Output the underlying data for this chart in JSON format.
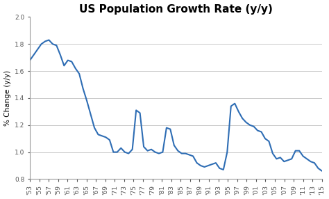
{
  "title": "US Population Growth Rate (y/y)",
  "ylabel": "% Change (y/y)",
  "background_color": "#ffffff",
  "line_color": "#2e6db4",
  "line_width": 1.5,
  "ylim": [
    0.8,
    2.0
  ],
  "yticks": [
    0.8,
    1.0,
    1.2,
    1.4,
    1.6,
    1.8,
    2.0
  ],
  "x_labels": [
    "'53",
    "'55",
    "'57",
    "'59",
    "'61",
    "'63",
    "'65",
    "'67",
    "'69",
    "'71",
    "'73",
    "'75",
    "'77",
    "'79",
    "'81",
    "'83",
    "'85",
    "'87",
    "'89",
    "'91",
    "'93",
    "'95",
    "'97",
    "'99",
    "'01",
    "'03",
    "'05",
    "'07",
    "'09",
    "'11",
    "'13",
    "'15"
  ],
  "data": [
    1.68,
    1.72,
    1.76,
    1.8,
    1.82,
    1.83,
    1.8,
    1.79,
    1.72,
    1.64,
    1.68,
    1.67,
    1.62,
    1.58,
    1.47,
    1.38,
    1.28,
    1.18,
    1.13,
    1.12,
    1.11,
    1.09,
    1.0,
    1.0,
    1.03,
    1.0,
    0.99,
    1.02,
    1.31,
    1.29,
    1.04,
    1.01,
    1.02,
    1.0,
    0.99,
    1.0,
    1.18,
    1.17,
    1.05,
    1.01,
    0.99,
    0.99,
    0.98,
    0.97,
    0.92,
    0.9,
    0.89,
    0.9,
    0.91,
    0.92,
    0.88,
    0.87,
    1.0,
    1.34,
    1.36,
    1.3,
    1.25,
    1.22,
    1.2,
    1.19,
    1.16,
    1.15,
    1.1,
    1.08,
    0.99,
    0.95,
    0.96,
    0.93,
    0.94,
    0.95,
    1.01,
    1.01,
    0.97,
    0.95,
    0.93,
    0.92,
    0.88,
    0.86
  ],
  "tick_label_fontsize": 6.5,
  "title_fontsize": 11,
  "ylabel_fontsize": 7.5,
  "grid_color": "#c8c8c8",
  "grid_linewidth": 0.7,
  "spine_color": "#999999"
}
